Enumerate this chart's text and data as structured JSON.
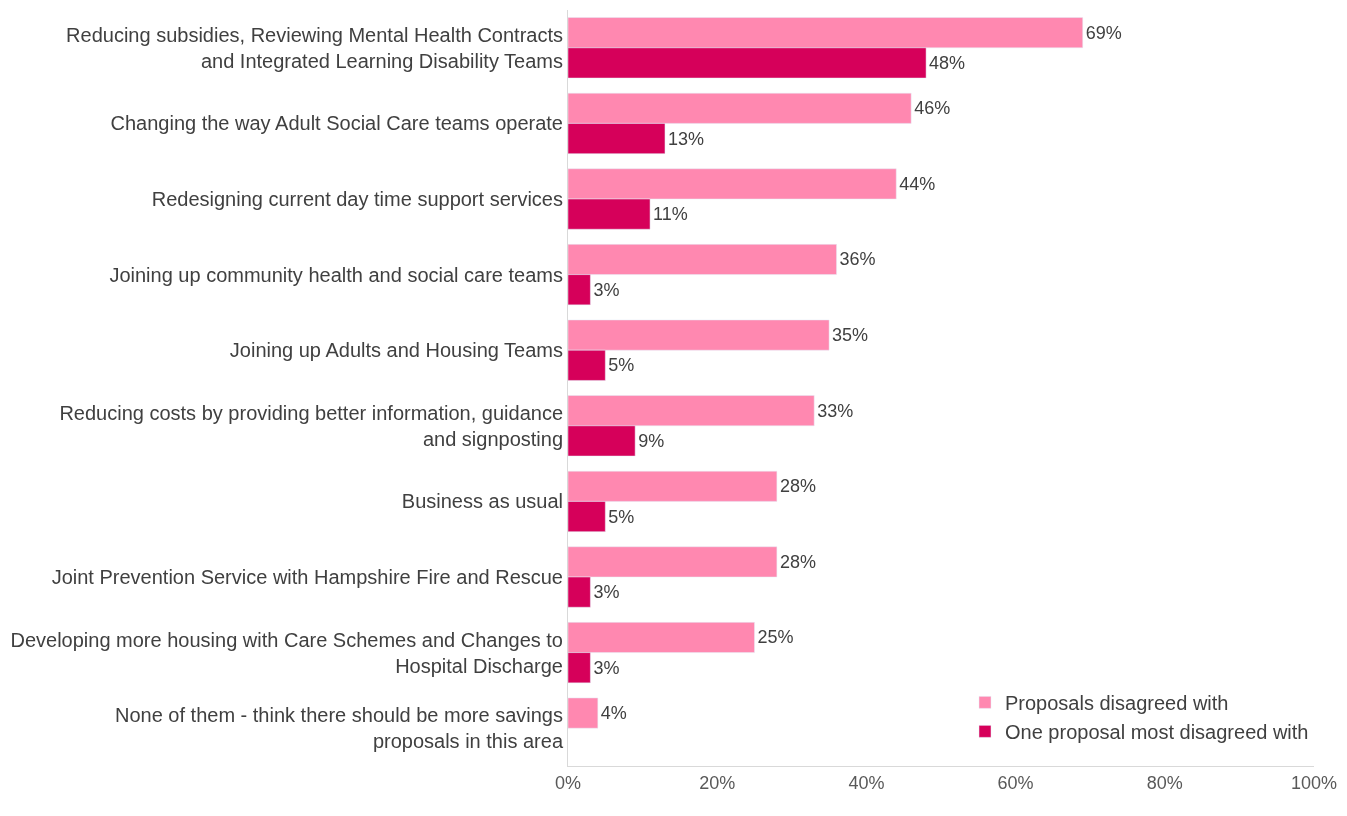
{
  "chart_data": {
    "type": "bar",
    "orientation": "horizontal",
    "categories": [
      "Reducing subsidies, Reviewing Mental Health Contracts and Integrated Learning Disability Teams",
      "Changing the way Adult Social Care teams operate",
      "Redesigning current day time support services",
      "Joining up community health and social care teams",
      "Joining up Adults and Housing Teams",
      "Reducing costs by providing better information, guidance and signposting",
      "Business as usual",
      "Joint Prevention Service with Hampshire Fire and Rescue",
      "Developing more housing with Care Schemes and Changes to Hospital Discharge",
      "None of them - think there should be more savings proposals in this area"
    ],
    "series": [
      {
        "name": "Proposals disagreed with",
        "color": "#ff88b0",
        "values": [
          69,
          46,
          44,
          36,
          35,
          33,
          28,
          28,
          25,
          4
        ],
        "value_labels": [
          "69%",
          "46%",
          "44%",
          "36%",
          "35%",
          "33%",
          "28%",
          "28%",
          "25%",
          "4%"
        ]
      },
      {
        "name": "One proposal most disagreed with",
        "color": "#d6005a",
        "values": [
          48,
          13,
          11,
          3,
          5,
          9,
          5,
          3,
          3,
          null
        ],
        "value_labels": [
          "48%",
          "13%",
          "11%",
          "3%",
          "5%",
          "9%",
          "5%",
          "3%",
          "3%",
          null
        ]
      }
    ],
    "xlim": [
      0,
      100
    ],
    "xticks": [
      {
        "value": 0,
        "label": "0%"
      },
      {
        "value": 20,
        "label": "20%"
      },
      {
        "value": 40,
        "label": "40%"
      },
      {
        "value": 60,
        "label": "60%"
      },
      {
        "value": 80,
        "label": "80%"
      },
      {
        "value": 100,
        "label": "100%"
      }
    ],
    "legend": "bottom right"
  }
}
